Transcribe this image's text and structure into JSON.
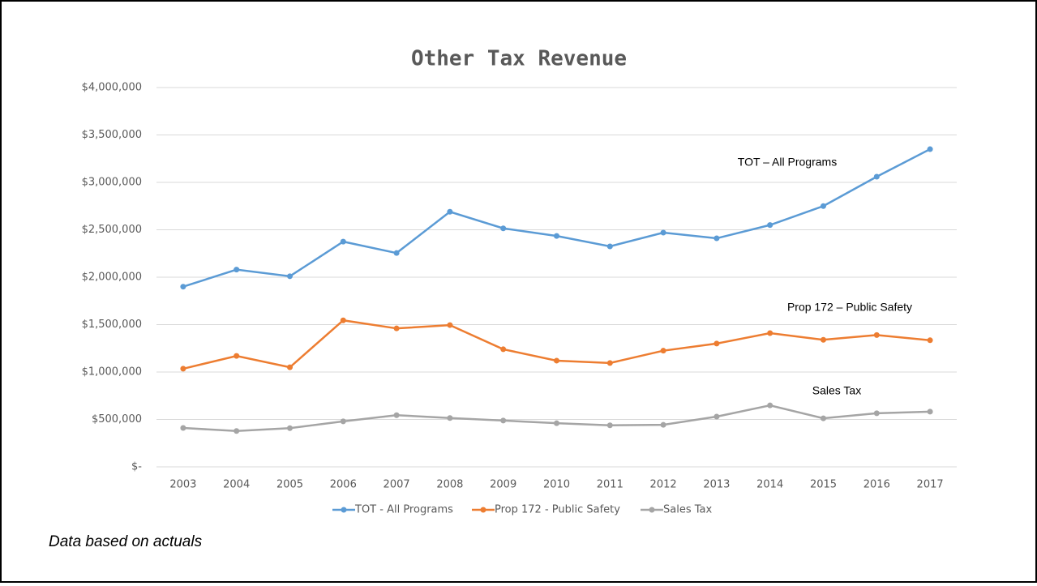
{
  "chart_data": {
    "type": "line",
    "title": "Other Tax Revenue",
    "categories": [
      "2003",
      "2004",
      "2005",
      "2006",
      "2007",
      "2008",
      "2009",
      "2010",
      "2011",
      "2012",
      "2013",
      "2014",
      "2015",
      "2016",
      "2017"
    ],
    "series": [
      {
        "name": "TOT - All Programs",
        "color": "#5b9bd5",
        "values": [
          1900000,
          2080000,
          2010000,
          2375000,
          2255000,
          2690000,
          2515000,
          2435000,
          2325000,
          2470000,
          2410000,
          2550000,
          2750000,
          3060000,
          3350000
        ]
      },
      {
        "name": "Prop 172 - Public Safety",
        "color": "#ed7d31",
        "values": [
          1035000,
          1170000,
          1050000,
          1545000,
          1460000,
          1495000,
          1240000,
          1120000,
          1095000,
          1225000,
          1300000,
          1410000,
          1340000,
          1390000,
          1335000
        ]
      },
      {
        "name": "Sales Tax",
        "color": "#a5a5a5",
        "values": [
          410000,
          378000,
          408000,
          480000,
          545000,
          515000,
          488000,
          460000,
          438000,
          443000,
          530000,
          648000,
          512000,
          565000,
          582000
        ]
      }
    ],
    "ylim": [
      0,
      4000000
    ],
    "yticks": [
      {
        "value": 0,
        "label": "$-"
      },
      {
        "value": 500000,
        "label": "$500,000"
      },
      {
        "value": 1000000,
        "label": "$1,000,000"
      },
      {
        "value": 1500000,
        "label": "$1,500,000"
      },
      {
        "value": 2000000,
        "label": "$2,000,000"
      },
      {
        "value": 2500000,
        "label": "$2,500,000"
      },
      {
        "value": 3000000,
        "label": "$3,000,000"
      },
      {
        "value": 3500000,
        "label": "$3,500,000"
      },
      {
        "value": 4000000,
        "label": "$4,000,000"
      }
    ],
    "grid": true,
    "legend": "bottom",
    "annotations": [
      "TOT – All Programs",
      "Prop 172 – Public Safety",
      "Sales Tax"
    ]
  },
  "note": "Data based on actuals"
}
